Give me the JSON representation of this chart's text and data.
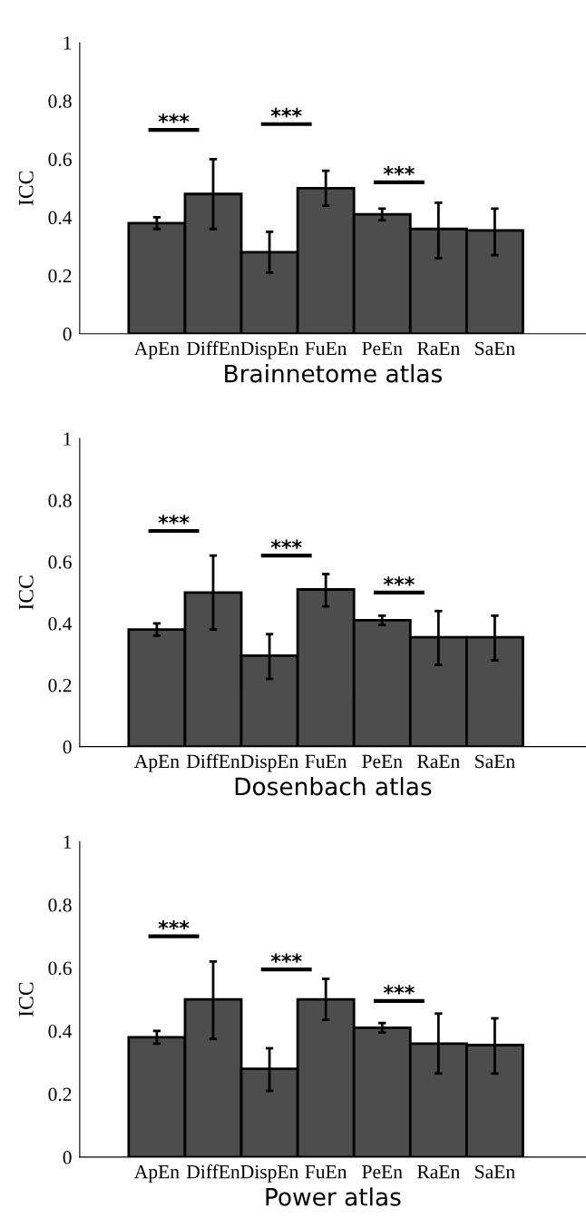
{
  "chart_data": [
    {
      "type": "bar",
      "xlabel": "Brainnetome atlas",
      "ylabel": "ICC",
      "categories": [
        "ApEn",
        "DiffEn",
        "DispEn",
        "FuEn",
        "PeEn",
        "RaEn",
        "SaEn"
      ],
      "color": "#4d4d4d",
      "values": [
        0.38,
        0.48,
        0.28,
        0.5,
        0.41,
        0.36,
        0.355
      ],
      "errors": [
        [
          0.36,
          0.4
        ],
        [
          0.36,
          0.6
        ],
        [
          0.21,
          0.35
        ],
        [
          0.44,
          0.56
        ],
        [
          0.39,
          0.43
        ],
        [
          0.26,
          0.45
        ],
        [
          0.27,
          0.43
        ]
      ],
      "ylim": [
        0,
        1
      ],
      "yticks": [
        0,
        0.2,
        0.4,
        0.6,
        0.8,
        1
      ],
      "grid": false,
      "legend": false,
      "annotations": [
        "***",
        "***",
        "***"
      ]
    },
    {
      "type": "bar",
      "xlabel": "Dosenbach atlas",
      "ylabel": "ICC",
      "categories": [
        "ApEn",
        "DiffEn",
        "DispEn",
        "FuEn",
        "PeEn",
        "RaEn",
        "SaEn"
      ],
      "color": "#4d4d4d",
      "values": [
        0.38,
        0.5,
        0.295,
        0.51,
        0.41,
        0.355,
        0.355
      ],
      "errors": [
        [
          0.36,
          0.4
        ],
        [
          0.38,
          0.62
        ],
        [
          0.22,
          0.365
        ],
        [
          0.455,
          0.56
        ],
        [
          0.395,
          0.425
        ],
        [
          0.265,
          0.44
        ],
        [
          0.28,
          0.425
        ]
      ],
      "ylim": [
        0,
        1
      ],
      "yticks": [
        0,
        0.2,
        0.4,
        0.6,
        0.8,
        1
      ],
      "grid": false,
      "legend": false,
      "annotations": [
        "***",
        "***",
        "***"
      ]
    },
    {
      "type": "bar",
      "xlabel": "Power atlas",
      "ylabel": "ICC",
      "categories": [
        "ApEn",
        "DiffEn",
        "DispEn",
        "FuEn",
        "PeEn",
        "RaEn",
        "SaEn"
      ],
      "color": "#4d4d4d",
      "values": [
        0.38,
        0.5,
        0.28,
        0.5,
        0.41,
        0.36,
        0.355
      ],
      "errors": [
        [
          0.36,
          0.4
        ],
        [
          0.375,
          0.62
        ],
        [
          0.21,
          0.345
        ],
        [
          0.435,
          0.565
        ],
        [
          0.395,
          0.425
        ],
        [
          0.265,
          0.455
        ],
        [
          0.265,
          0.44
        ]
      ],
      "ylim": [
        0,
        1
      ],
      "yticks": [
        0,
        0.2,
        0.4,
        0.6,
        0.8,
        1
      ],
      "grid": false,
      "legend": false,
      "annotations": [
        "***",
        "***",
        "***"
      ]
    }
  ]
}
